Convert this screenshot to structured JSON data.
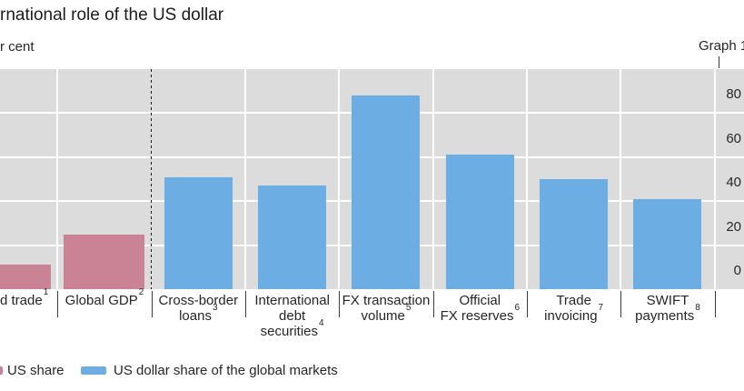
{
  "page": {
    "title_visible": "rnational role of the US dollar",
    "unit_label_visible": "r cent",
    "graph_label": "Graph 1"
  },
  "colors": {
    "us_share": "#c98394",
    "usd_share": "#6cade3",
    "plot_background": "#dcdcdc",
    "gridline": "#ffffff",
    "text": "#262626"
  },
  "legend": {
    "items": [
      {
        "label": "US share",
        "series": "us_share",
        "swatch_clipped_left": true
      },
      {
        "label": "US dollar share of the global markets",
        "series": "usd_share",
        "swatch_clipped_left": false
      }
    ]
  },
  "chart_data": {
    "type": "bar",
    "title": "rnational role of the US dollar",
    "ylabel": "r cent",
    "ylim": [
      0,
      100
    ],
    "yticks": [
      0,
      20,
      40,
      60,
      80
    ],
    "grid": true,
    "legend_position": "bottom",
    "categories": [
      {
        "key": "world-trade",
        "lines": [
          "d trade"
        ],
        "sup": "1",
        "clipped_left": true
      },
      {
        "key": "global-gdp",
        "lines": [
          "Global GDP"
        ],
        "sup": "2",
        "clipped_left": false
      },
      {
        "key": "cross-border-loans",
        "lines": [
          "Cross-border",
          "loans"
        ],
        "sup": "3",
        "clipped_left": false
      },
      {
        "key": "international-debt-securities",
        "lines": [
          "International",
          "debt",
          "securities"
        ],
        "sup": "4",
        "clipped_left": false
      },
      {
        "key": "fx-transaction-volume",
        "lines": [
          "FX transaction",
          "volume"
        ],
        "sup": "5",
        "clipped_left": false
      },
      {
        "key": "official-fx-reserves",
        "lines": [
          "Official",
          "FX reserves"
        ],
        "sup": "6",
        "clipped_left": false
      },
      {
        "key": "trade-invoicing",
        "lines": [
          "Trade",
          "invoicing"
        ],
        "sup": "7",
        "clipped_left": false
      },
      {
        "key": "swift-payments",
        "lines": [
          "SWIFT",
          "payments"
        ],
        "sup": "8",
        "clipped_left": false
      }
    ],
    "series_membership": [
      "us_share",
      "us_share",
      "usd_share",
      "usd_share",
      "usd_share",
      "usd_share",
      "usd_share",
      "usd_share"
    ],
    "values": [
      11,
      25,
      51,
      47,
      88,
      61,
      50,
      41
    ],
    "divider_after_category_index": 1
  }
}
